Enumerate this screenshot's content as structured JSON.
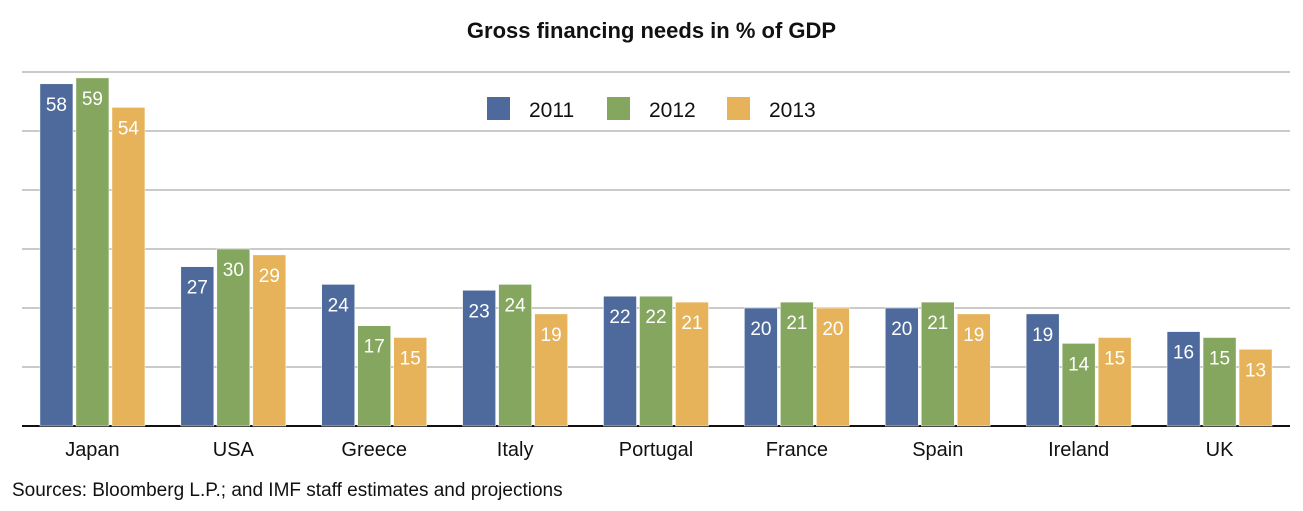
{
  "chart_data": {
    "type": "bar",
    "title": "Gross financing needs in % of GDP",
    "categories": [
      "Japan",
      "USA",
      "Greece",
      "Italy",
      "Portugal",
      "France",
      "Spain",
      "Ireland",
      "UK"
    ],
    "series": [
      {
        "name": "2011",
        "color": "#4e6a9c",
        "values": [
          58,
          27,
          24,
          23,
          22,
          20,
          20,
          19,
          16
        ]
      },
      {
        "name": "2012",
        "color": "#84a65e",
        "values": [
          59,
          30,
          17,
          24,
          22,
          21,
          21,
          14,
          15
        ]
      },
      {
        "name": "2013",
        "color": "#e6b35a",
        "values": [
          54,
          29,
          15,
          19,
          21,
          20,
          19,
          15,
          13
        ]
      }
    ],
    "ylim": [
      0,
      60
    ],
    "grid": true,
    "legend": "top-center",
    "xlabel": "",
    "ylabel": ""
  },
  "source": "Sources: Bloomberg L.P.; and IMF staff estimates and projections"
}
